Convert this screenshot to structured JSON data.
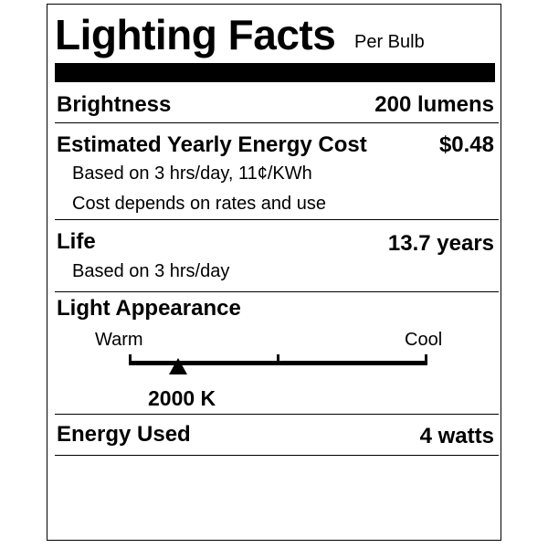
{
  "header": {
    "title": "Lighting Facts",
    "subtitle": "Per Bulb"
  },
  "rows": {
    "brightness": {
      "label": "Brightness",
      "value": "200 lumens"
    },
    "cost": {
      "label": "Estimated Yearly Energy Cost",
      "value": "$0.48",
      "notes": [
        "Based on 3 hrs/day, 11¢/KWh",
        "Cost depends on rates and use"
      ]
    },
    "life": {
      "label": "Life",
      "value": "13.7 years",
      "notes": [
        "Based on 3 hrs/day"
      ]
    },
    "appearance": {
      "label": "Light Appearance",
      "scale_left": "Warm",
      "scale_right": "Cool",
      "marker_value": "2000 K",
      "marker_fraction": 0.165
    },
    "energy": {
      "label": "Energy Used",
      "value": "4 watts"
    }
  }
}
